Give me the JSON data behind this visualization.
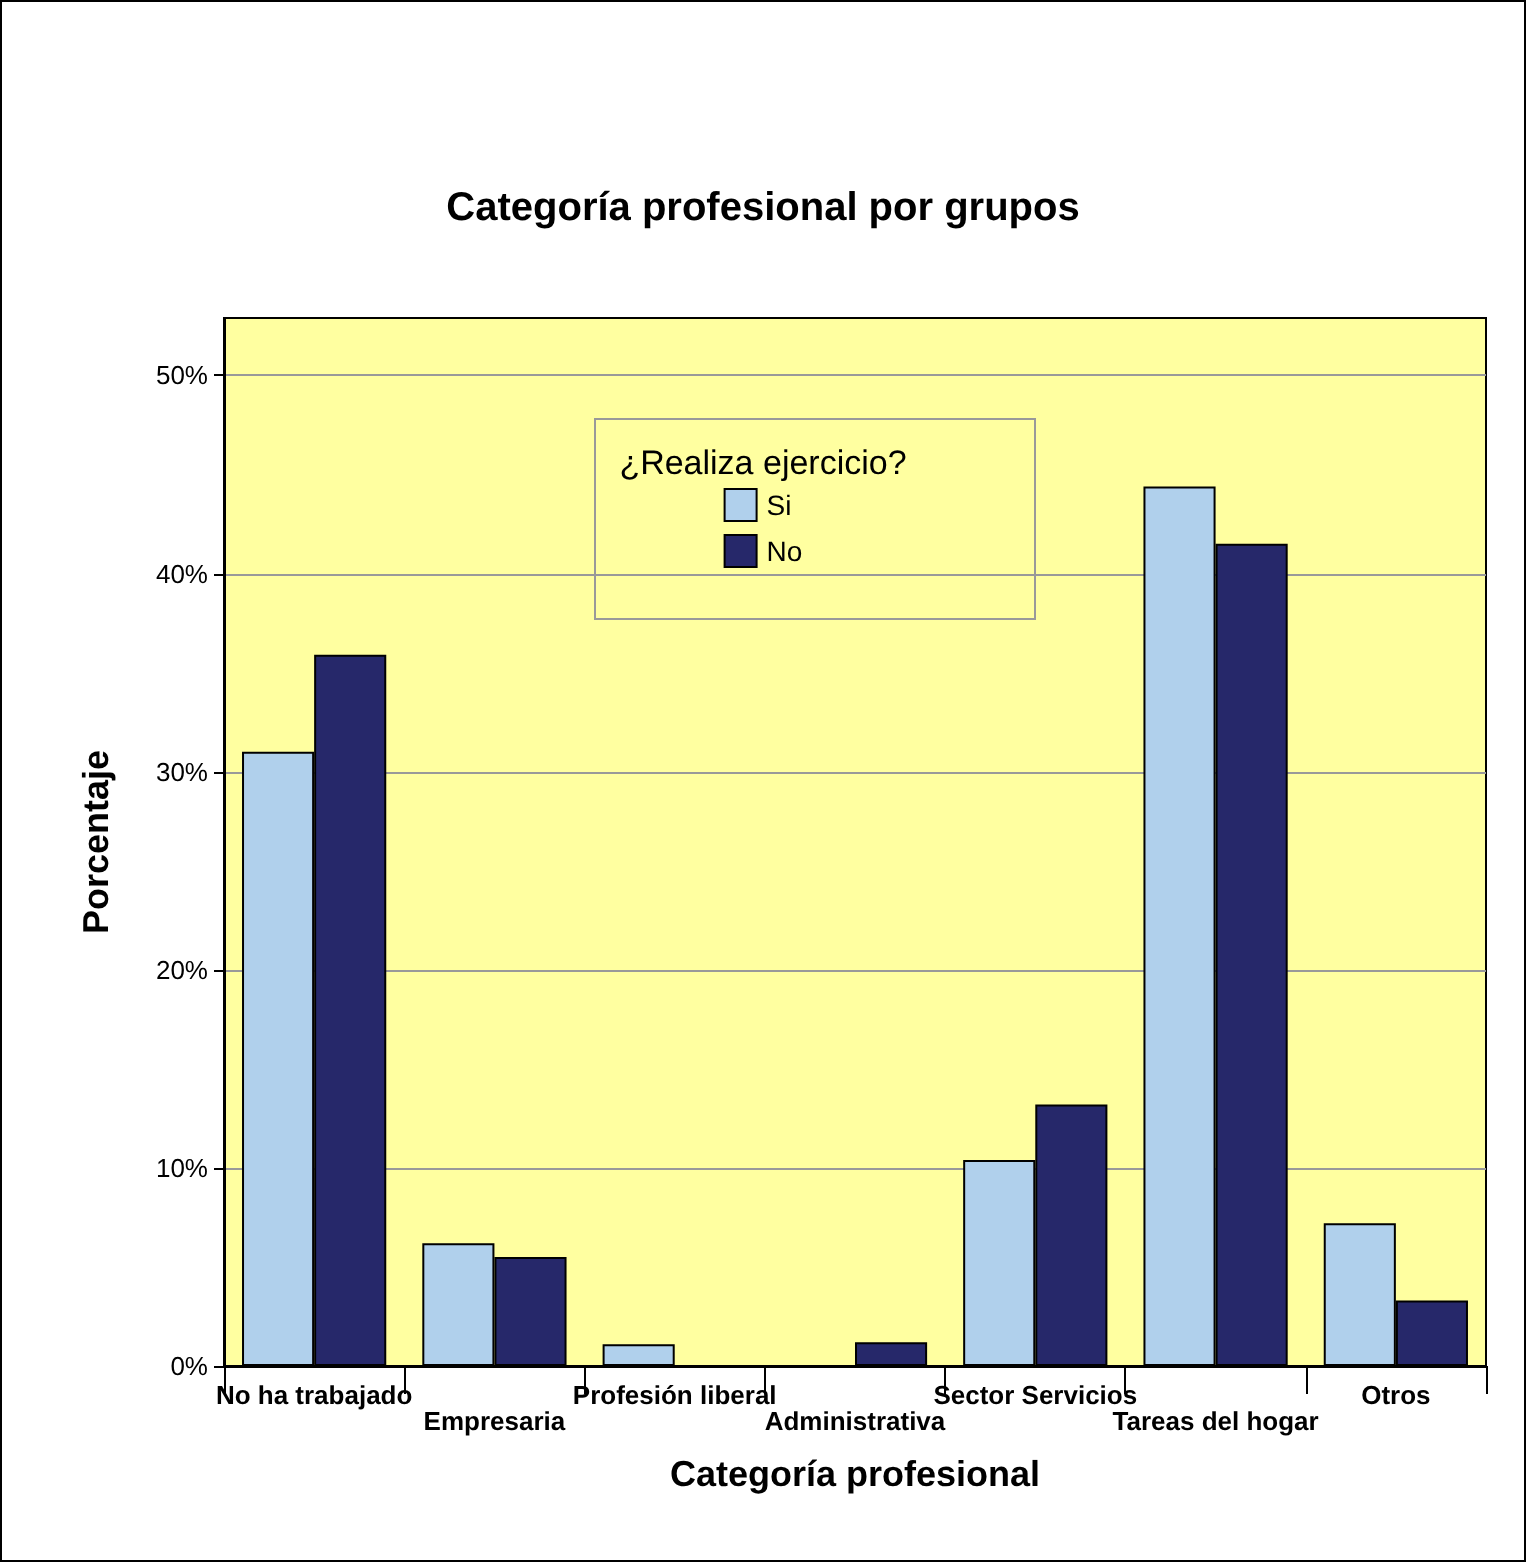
{
  "chart_data": {
    "type": "bar",
    "title": "Categoría profesional por grupos",
    "xlabel": "Categoría profesional",
    "ylabel": "Porcentaje",
    "legend_title": "¿Realiza ejercicio?",
    "categories": [
      "No ha trabajado",
      "Empresaria",
      "Profesión liberal",
      "Administrativa",
      "Sector Servicios",
      "Tareas del hogar",
      "Otros"
    ],
    "series": [
      {
        "name": "Si",
        "color": "#b0d0ec",
        "values": [
          31.0,
          6.2,
          1.1,
          0,
          10.4,
          44.4,
          7.2
        ]
      },
      {
        "name": "No",
        "color": "#26286a",
        "values": [
          35.9,
          5.5,
          0,
          1.2,
          13.2,
          41.5,
          3.3
        ]
      }
    ],
    "ylim": [
      0,
      52.9
    ],
    "yticks": [
      {
        "value": 0,
        "label": "0%"
      },
      {
        "value": 10,
        "label": "10%"
      },
      {
        "value": 20,
        "label": "20%"
      },
      {
        "value": 30,
        "label": "30%"
      },
      {
        "value": 40,
        "label": "40%"
      },
      {
        "value": 50,
        "label": "50%"
      }
    ],
    "grid": "y",
    "legend": "top"
  }
}
